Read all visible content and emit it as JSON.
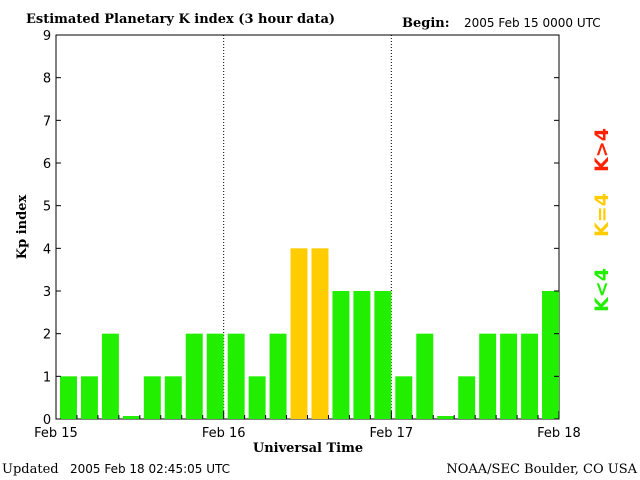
{
  "header": {
    "title": "Estimated Planetary K index (3 hour data)",
    "begin_label": "Begin:",
    "begin_value": "2005 Feb 15 0000 UTC"
  },
  "footer": {
    "updated_label": "Updated",
    "updated_value": "2005 Feb 18 02:45:05 UTC",
    "source": "NOAA/SEC Boulder, CO USA"
  },
  "legend": {
    "items": [
      {
        "label": "K<4",
        "color": "#22ee00"
      },
      {
        "label": "K=4",
        "color": "#ffcc00"
      },
      {
        "label": "K>4",
        "color": "#ff2200"
      }
    ]
  },
  "chart_data": {
    "type": "bar",
    "ylabel": "Kp index",
    "xlabel": "Universal Time",
    "ylim": [
      0,
      9
    ],
    "yticks": [
      0,
      1,
      2,
      3,
      4,
      5,
      6,
      7,
      8,
      9
    ],
    "x_day_labels": [
      "Feb 15",
      "Feb 16",
      "Feb 17",
      "Feb 18"
    ],
    "intervals_per_day": 8,
    "values": [
      1,
      1,
      2,
      0.07,
      1,
      1,
      2,
      2,
      2,
      1,
      2,
      4,
      4,
      3,
      3,
      3,
      1,
      2,
      0.07,
      1,
      2,
      2,
      2,
      3
    ],
    "colors": {
      "below": "#22ee00",
      "equal": "#ffcc00",
      "above": "#ff2200"
    },
    "day_separators": "dotted",
    "grid": false
  }
}
